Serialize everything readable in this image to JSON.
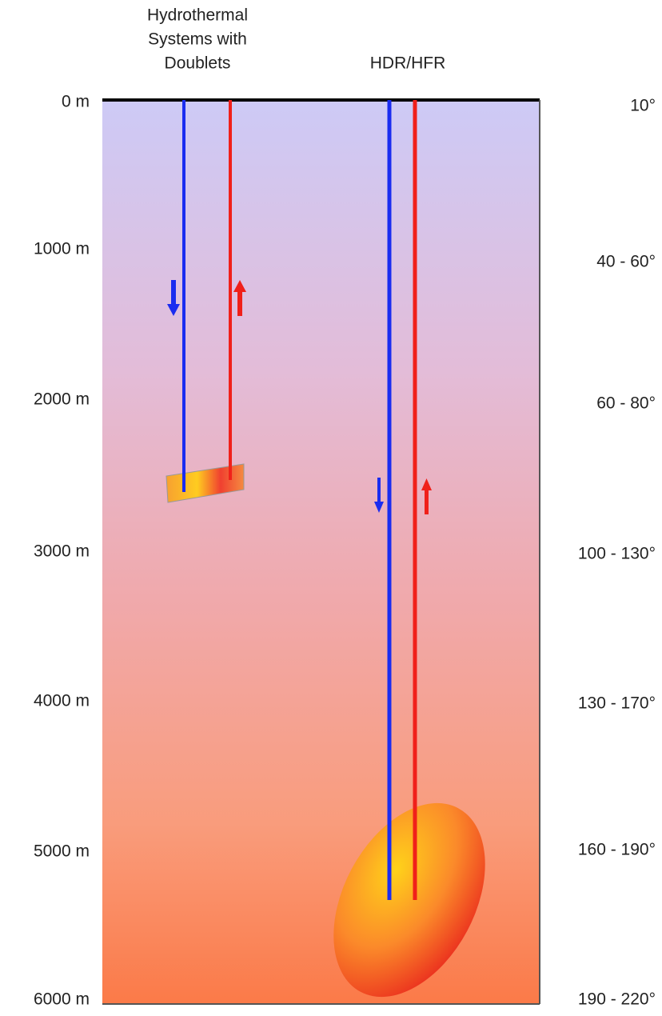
{
  "headers": {
    "hydrothermal": [
      "Hydrothermal",
      "Systems with",
      "Doublets"
    ],
    "hdr": "HDR/HFR"
  },
  "depths": [
    "0 m",
    "1000 m",
    "2000 m",
    "3000 m",
    "4000 m",
    "5000 m",
    "6000 m"
  ],
  "temperatures": [
    "10°",
    "40 - 60°",
    "60 - 80°",
    "100 - 130°",
    "130 - 170°",
    "160 - 190°",
    "190 - 220°"
  ]
}
